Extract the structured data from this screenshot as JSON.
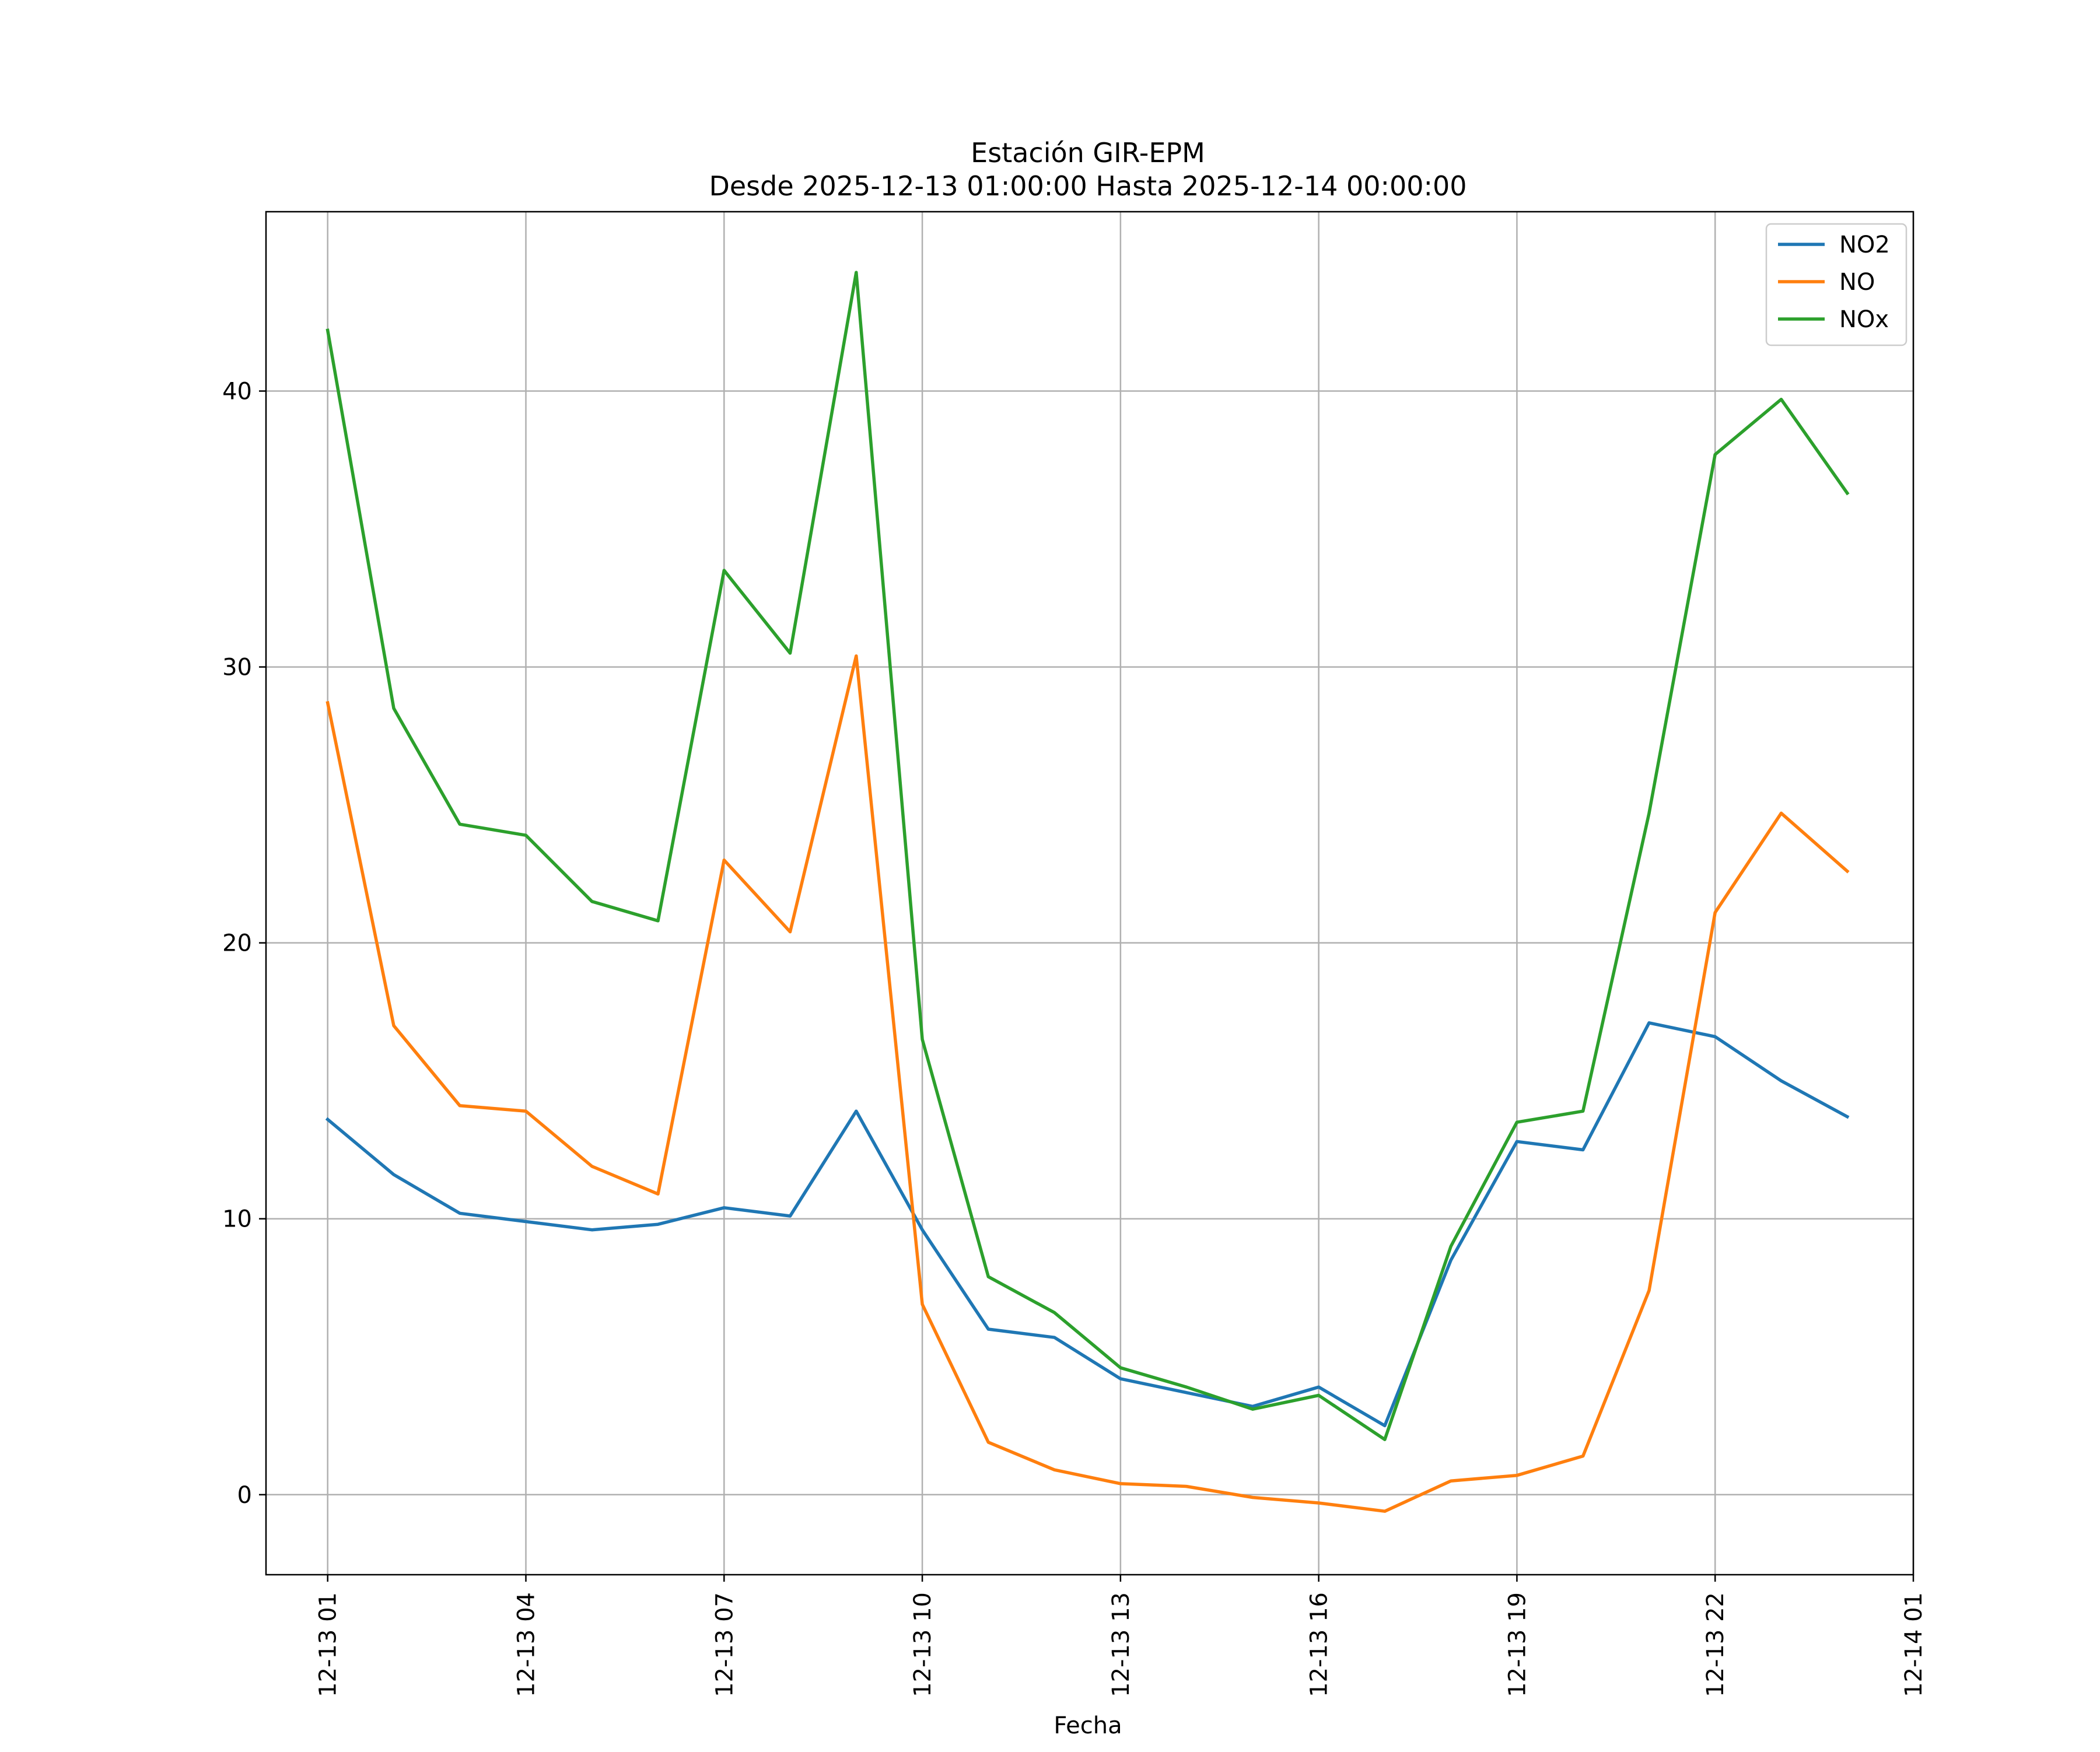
{
  "chart_data": {
    "type": "line",
    "title": "Estación GIR-EPM",
    "subtitle": "Desde 2025-12-13 01:00:00 Hasta 2025-12-14 00:00:00",
    "xlabel": "Fecha",
    "ylabel": "",
    "x": [
      "2025-12-13 01:00",
      "2025-12-13 02:00",
      "2025-12-13 03:00",
      "2025-12-13 04:00",
      "2025-12-13 05:00",
      "2025-12-13 06:00",
      "2025-12-13 07:00",
      "2025-12-13 08:00",
      "2025-12-13 09:00",
      "2025-12-13 10:00",
      "2025-12-13 11:00",
      "2025-12-13 12:00",
      "2025-12-13 13:00",
      "2025-12-13 14:00",
      "2025-12-13 15:00",
      "2025-12-13 16:00",
      "2025-12-13 17:00",
      "2025-12-13 18:00",
      "2025-12-13 19:00",
      "2025-12-13 20:00",
      "2025-12-13 21:00",
      "2025-12-13 22:00",
      "2025-12-13 23:00",
      "2025-12-14 00:00"
    ],
    "xlim": [
      "2025-12-13 00:04",
      "2025-12-14 01:00"
    ],
    "xticks": [
      "2025-12-13 01:00",
      "2025-12-13 04:00",
      "2025-12-13 07:00",
      "2025-12-13 10:00",
      "2025-12-13 13:00",
      "2025-12-13 16:00",
      "2025-12-13 19:00",
      "2025-12-13 22:00",
      "2025-12-14 01:00"
    ],
    "xtick_labels": [
      "12-13 01",
      "12-13 04",
      "12-13 07",
      "12-13 10",
      "12-13 13",
      "12-13 16",
      "12-13 19",
      "12-13 22",
      "12-14 01"
    ],
    "yticks": [
      0,
      10,
      20,
      30,
      40
    ],
    "ylim": [
      -2.9,
      46.5
    ],
    "grid": true,
    "legend_position": "top-right",
    "series": [
      {
        "name": "NO2",
        "color": "#1f77b4",
        "values": [
          13.6,
          11.6,
          10.2,
          9.9,
          9.6,
          9.8,
          10.4,
          10.1,
          13.9,
          9.6,
          6.0,
          5.7,
          4.2,
          3.7,
          3.2,
          3.9,
          2.5,
          8.5,
          12.8,
          12.5,
          17.1,
          16.6,
          15.0,
          13.7
        ]
      },
      {
        "name": "NO",
        "color": "#ff7f0e",
        "values": [
          28.7,
          17.0,
          14.1,
          13.9,
          11.9,
          10.9,
          23.0,
          20.4,
          30.4,
          6.9,
          1.9,
          0.9,
          0.4,
          0.3,
          -0.1,
          -0.3,
          -0.6,
          0.5,
          0.7,
          1.4,
          7.4,
          21.1,
          24.7,
          22.6
        ]
      },
      {
        "name": "NOx",
        "color": "#2ca02c",
        "values": [
          42.2,
          28.5,
          24.3,
          23.9,
          21.5,
          20.8,
          33.5,
          30.5,
          44.3,
          16.5,
          7.9,
          6.6,
          4.6,
          3.9,
          3.1,
          3.6,
          2.0,
          9.0,
          13.5,
          13.9,
          24.7,
          37.7,
          39.7,
          36.3
        ]
      }
    ]
  }
}
